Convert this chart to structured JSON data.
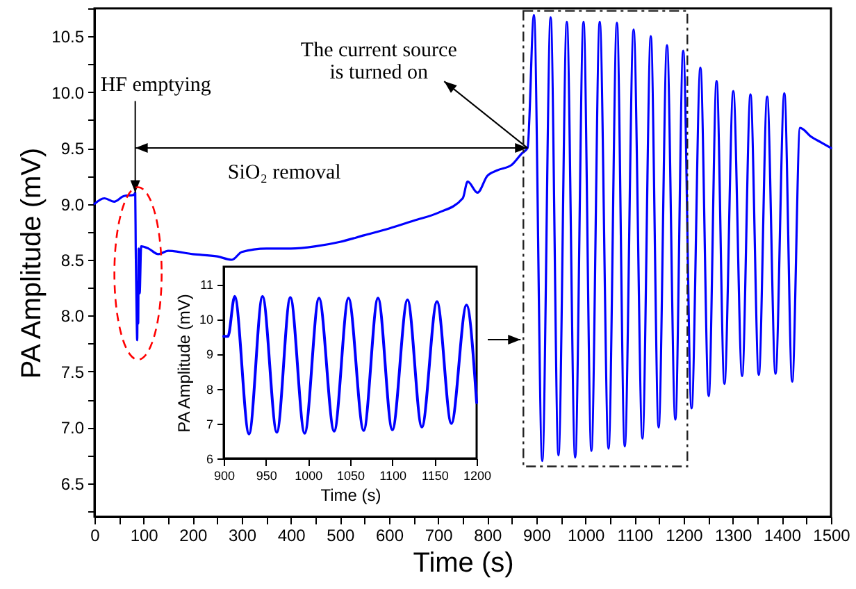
{
  "chart_data": [
    {
      "type": "line",
      "xlabel": "Time (s)",
      "ylabel": "PA  Amplitude (mV)",
      "x": [
        0,
        20,
        40,
        60,
        80,
        83,
        84,
        86,
        87,
        88,
        89,
        90,
        92,
        95,
        110,
        130,
        150,
        200,
        250,
        280,
        300,
        350,
        400,
        450,
        500,
        550,
        600,
        650,
        700,
        750,
        760,
        780,
        800,
        820,
        850,
        870,
        882,
        895,
        912,
        929,
        945,
        962,
        979,
        996,
        1012,
        1029,
        1047,
        1064,
        1080,
        1098,
        1116,
        1133,
        1149,
        1166,
        1183,
        1199,
        1216,
        1234,
        1251,
        1267,
        1283,
        1301,
        1319,
        1336,
        1353,
        1370,
        1387,
        1405,
        1421,
        1437,
        1460,
        1480,
        1500
      ],
      "series": [
        {
          "color": "#0000ff",
          "values": [
            9.0,
            9.05,
            9.02,
            9.07,
            9.08,
            9.1,
            8.6,
            7.95,
            7.78,
            8.3,
            7.93,
            8.6,
            8.2,
            8.62,
            8.6,
            8.55,
            8.58,
            8.55,
            8.53,
            8.5,
            8.57,
            8.6,
            8.6,
            8.62,
            8.66,
            8.72,
            8.78,
            8.85,
            8.92,
            9.05,
            9.2,
            9.1,
            9.25,
            9.3,
            9.35,
            9.45,
            9.5,
            10.69,
            6.7,
            10.67,
            6.75,
            10.63,
            6.73,
            10.63,
            6.79,
            10.63,
            6.81,
            10.62,
            6.83,
            10.56,
            6.9,
            10.5,
            7.0,
            10.42,
            7.07,
            10.37,
            7.17,
            10.22,
            7.28,
            10.1,
            7.39,
            10.01,
            7.46,
            9.98,
            7.47,
            9.96,
            7.48,
            9.99,
            7.41,
            9.68,
            9.6,
            9.55,
            9.5
          ]
        }
      ],
      "xlim": [
        0,
        1500
      ],
      "ylim": [
        6.2,
        10.75
      ],
      "xticks": [
        0,
        {
          "value": 50,
          "label": null
        },
        100,
        {
          "value": 150,
          "label": null
        },
        200,
        {
          "value": 250,
          "label": null
        },
        300,
        {
          "value": 350,
          "label": null
        },
        400,
        {
          "value": 450,
          "label": null
        },
        500,
        {
          "value": 550,
          "label": null
        },
        600,
        {
          "value": 650,
          "label": null
        },
        700,
        {
          "value": 750,
          "label": null
        },
        800,
        {
          "value": 850,
          "label": null
        },
        900,
        {
          "value": 950,
          "label": null
        },
        1000,
        {
          "value": 1050,
          "label": null
        },
        1100,
        {
          "value": 1150,
          "label": null
        },
        1200,
        {
          "value": 1250,
          "label": null
        },
        1300,
        {
          "value": 1350,
          "label": null
        },
        1400,
        {
          "value": 1450,
          "label": null
        },
        1500
      ],
      "yticks": [
        {
          "value": 6.25,
          "label": null
        },
        6.5,
        {
          "value": 6.75,
          "label": null
        },
        {
          "value": 7,
          "label": "7.0"
        },
        {
          "value": 7.25,
          "label": null
        },
        7.5,
        {
          "value": 7.75,
          "label": null
        },
        {
          "value": 8,
          "label": "8.0"
        },
        {
          "value": 8.25,
          "label": null
        },
        8.5,
        {
          "value": 8.75,
          "label": null
        },
        {
          "value": 9,
          "label": "9.0"
        },
        {
          "value": 9.25,
          "label": null
        },
        9.5,
        {
          "value": 9.75,
          "label": null
        },
        {
          "value": 10,
          "label": "10.0"
        },
        {
          "value": 10.25,
          "label": null
        },
        10.5,
        {
          "value": 10.75,
          "label": null
        }
      ],
      "annotations": [
        {
          "text": "HF emptying",
          "x": 83,
          "y": 9.1
        },
        {
          "text": "The current source\nis turned on",
          "x": 882,
          "y": 9.5
        },
        "SiO₂ removal"
      ]
    },
    {
      "type": "line",
      "xlabel": "Time (s)",
      "ylabel": "PA Amplitude (mV)",
      "x": [
        900,
        905,
        913,
        930,
        946,
        963,
        979,
        996,
        1013,
        1031,
        1048,
        1066,
        1083,
        1100,
        1118,
        1135,
        1153,
        1170,
        1188,
        1200
      ],
      "series": [
        {
          "color": "#0000ff",
          "values": [
            9.5,
            9.5,
            10.65,
            6.7,
            10.65,
            6.75,
            10.62,
            6.72,
            10.6,
            6.78,
            10.6,
            6.8,
            10.6,
            6.82,
            10.55,
            6.9,
            10.5,
            7.0,
            10.4,
            7.6
          ]
        }
      ],
      "xlim": [
        900,
        1200
      ],
      "ylim": [
        6,
        11.5
      ],
      "xticks": [
        900,
        950,
        1000,
        1050,
        1100,
        1150,
        1200
      ],
      "yticks": [
        6,
        7,
        8,
        9,
        10,
        11
      ]
    }
  ]
}
